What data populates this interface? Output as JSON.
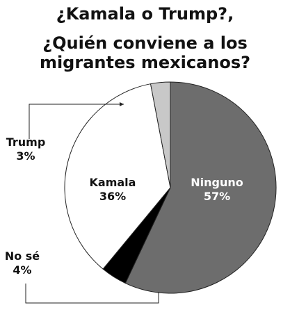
{
  "title_lines": [
    "¿Kamala o Trump?,",
    "¿Quién conviene a los",
    "migrantes mexicanos?"
  ],
  "chart_data": {
    "type": "pie",
    "title": "¿Kamala o Trump?, ¿Quién conviene a los migrantes mexicanos?",
    "slices": [
      {
        "label": "Ninguno",
        "value": 57,
        "value_label": "57%",
        "color": "#6d6d6d",
        "label_color": "#ffffff"
      },
      {
        "label": "No sé",
        "value": 4,
        "value_label": "4%",
        "color": "#000000",
        "label_color": "#111111"
      },
      {
        "label": "Kamala",
        "value": 36,
        "value_label": "36%",
        "color": "#ffffff",
        "label_color": "#111111"
      },
      {
        "label": "Trump",
        "value": 3,
        "value_label": "3%",
        "color": "#c8c8c8",
        "label_color": "#111111"
      }
    ]
  }
}
